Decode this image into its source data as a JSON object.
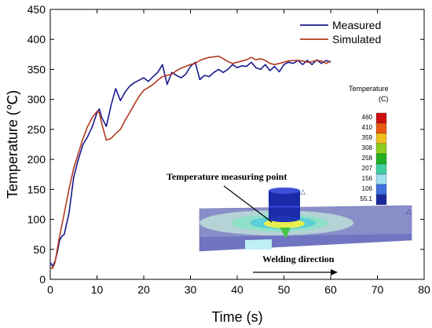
{
  "chart_data": {
    "type": "line",
    "xlabel": "Time (s)",
    "ylabel": "Temperature (℃)",
    "xlim": [
      0,
      80
    ],
    "ylim": [
      0,
      450
    ],
    "xticks": [
      0,
      10,
      20,
      30,
      40,
      50,
      60,
      70,
      80
    ],
    "yticks": [
      0,
      50,
      100,
      150,
      200,
      250,
      300,
      350,
      400,
      450
    ],
    "grid": false,
    "legend_position": "top-right",
    "series": [
      {
        "name": "Measured",
        "color": "#1a1a8c",
        "x": [
          0,
          0.5,
          1,
          1.5,
          2,
          2.5,
          3,
          4,
          5,
          6,
          7,
          8,
          9,
          10,
          10.5,
          11,
          12,
          13,
          14,
          15,
          16,
          17,
          18,
          19,
          20,
          21,
          22,
          23,
          24,
          25,
          26,
          27,
          28,
          29,
          30,
          31,
          32,
          33,
          34,
          35,
          36,
          37,
          38,
          39,
          40,
          41,
          42,
          43,
          44,
          45,
          46,
          47,
          48,
          49,
          50,
          51,
          52,
          53,
          54,
          55,
          56,
          57,
          58,
          59,
          60
        ],
        "y": [
          28,
          22,
          30,
          45,
          65,
          72,
          75,
          110,
          170,
          200,
          225,
          238,
          255,
          278,
          284,
          270,
          255,
          290,
          318,
          298,
          312,
          322,
          328,
          332,
          336,
          330,
          338,
          345,
          358,
          325,
          345,
          340,
          336,
          342,
          355,
          362,
          333,
          340,
          338,
          345,
          350,
          345,
          350,
          358,
          353,
          356,
          355,
          362,
          353,
          350,
          358,
          348,
          355,
          346,
          358,
          362,
          360,
          365,
          358,
          365,
          358,
          366,
          360,
          365,
          362
        ]
      },
      {
        "name": "Simulated",
        "color": "#b23a1e",
        "x": [
          0,
          0.5,
          1,
          1.5,
          2,
          3,
          4,
          5,
          6,
          7,
          8,
          9,
          10,
          10.5,
          11,
          12,
          13,
          14,
          15,
          16,
          17,
          18,
          19,
          20,
          21,
          22,
          23,
          24,
          25,
          26,
          27,
          28,
          29,
          30,
          31,
          32,
          33,
          34,
          35,
          36,
          37,
          38,
          39,
          40,
          41,
          42,
          43,
          44,
          45,
          46,
          47,
          48,
          49,
          50,
          51,
          52,
          53,
          54,
          55,
          56,
          57,
          58,
          59,
          60
        ],
        "y": [
          20,
          18,
          28,
          50,
          72,
          110,
          150,
          185,
          210,
          235,
          255,
          270,
          280,
          278,
          260,
          232,
          235,
          243,
          250,
          265,
          278,
          292,
          305,
          315,
          320,
          325,
          332,
          338,
          340,
          342,
          348,
          352,
          355,
          358,
          360,
          365,
          368,
          370,
          371,
          372,
          368,
          363,
          360,
          362,
          364,
          366,
          370,
          366,
          368,
          365,
          360,
          358,
          360,
          362,
          364,
          365,
          365,
          364,
          362,
          363,
          365,
          364,
          360,
          364
        ]
      }
    ]
  },
  "inset": {
    "title": "Temperature measuring point",
    "direction_label": "Welding direction",
    "colorbar": {
      "title": "Temperature",
      "unit": "(C)",
      "labels": [
        "460",
        "410",
        "359",
        "308",
        "258",
        "207",
        "156",
        "106",
        "55.1"
      ],
      "colors": [
        "#cc1010",
        "#e85a10",
        "#f0c020",
        "#8cd020",
        "#20b020",
        "#40d0a0",
        "#a0e0f0",
        "#4070e0",
        "#1a2a9c"
      ]
    }
  }
}
